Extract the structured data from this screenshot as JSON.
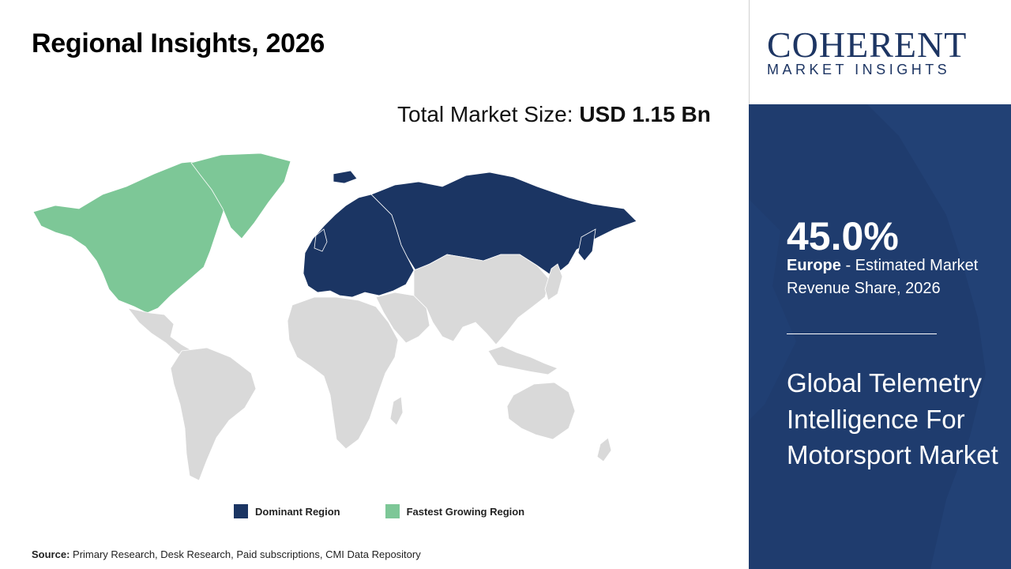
{
  "title": "Regional Insights, 2026",
  "market_size": {
    "label": "Total Market Size: ",
    "value": "USD 1.15 Bn"
  },
  "legend": {
    "dominant": {
      "label": "Dominant Region",
      "color": "#1b3563"
    },
    "fastest": {
      "label": "Fastest Growing Region",
      "color": "#7dc797"
    }
  },
  "map_colors": {
    "other": "#d9d9d9",
    "dominant": "#1b3563",
    "fastest": "#7dc797"
  },
  "source": {
    "label": "Source:",
    "text": " Primary Research, Desk Research, Paid subscriptions, CMI Data Repository"
  },
  "logo": {
    "top": "COHERENT",
    "bottom": "MARKET INSIGHTS"
  },
  "highlight": {
    "share": "45.0%",
    "region": "Europe",
    "desc": " - Estimated Market Revenue Share, 2026"
  },
  "market_name": "Global Telemetry Intelligence For Motorsport Market"
}
